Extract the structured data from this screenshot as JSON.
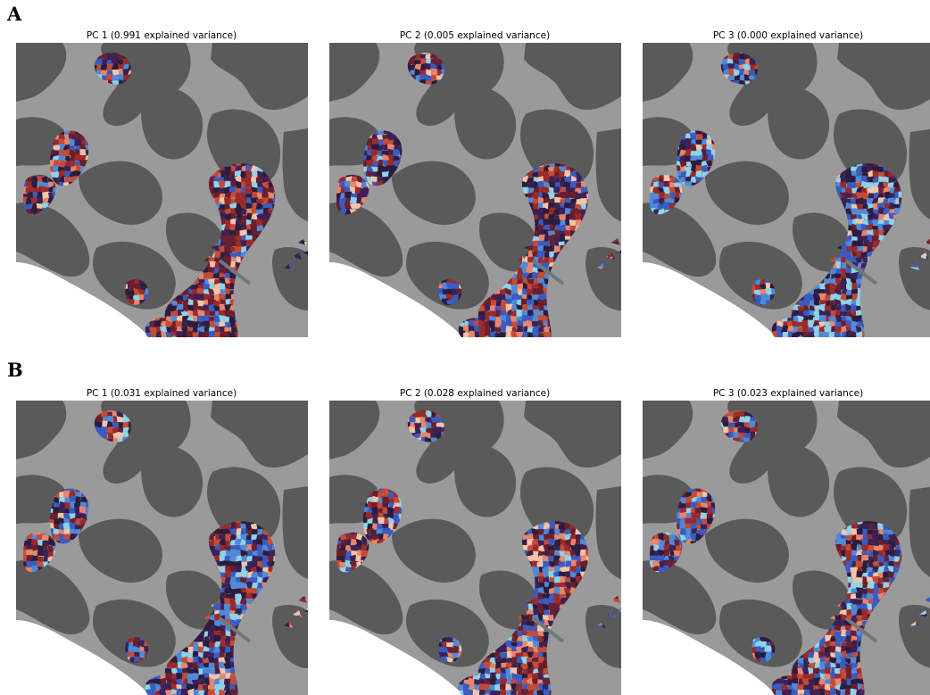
{
  "panels": [
    {
      "letter": "A",
      "plots": [
        {
          "title": "PC 1 (0.991 explained variance)",
          "colors": [
            "#2c1c3e",
            "#3d2154",
            "#6a1f2e",
            "#9b2a2a",
            "#c44b36",
            "#e8866b",
            "#f5c4a8",
            "#3a5bbf",
            "#4f89d9",
            "#8fd3e8"
          ],
          "weights": [
            16,
            12,
            16,
            12,
            10,
            8,
            5,
            10,
            7,
            4
          ]
        },
        {
          "title": "PC 2 (0.005 explained variance)",
          "colors": [
            "#2c1c3e",
            "#3d2154",
            "#6a1f2e",
            "#9b2a2a",
            "#c44b36",
            "#e8866b",
            "#f5c4a8",
            "#3a5bbf",
            "#4f89d9",
            "#8fd3e8"
          ],
          "weights": [
            14,
            12,
            12,
            10,
            8,
            8,
            6,
            14,
            10,
            6
          ]
        },
        {
          "title": "PC 3 (0.000 explained variance)",
          "colors": [
            "#2c1c3e",
            "#3d2154",
            "#6a1f2e",
            "#9b2a2a",
            "#c44b36",
            "#e8866b",
            "#f5c4a8",
            "#3a5bbf",
            "#4f89d9",
            "#8fd3e8"
          ],
          "weights": [
            12,
            12,
            6,
            8,
            6,
            5,
            3,
            18,
            14,
            16
          ]
        }
      ]
    },
    {
      "letter": "B",
      "plots": [
        {
          "title": "PC 1 (0.031 explained variance)",
          "colors": [
            "#2c1c3e",
            "#3d2154",
            "#6a1f2e",
            "#9b2a2a",
            "#c44b36",
            "#e8866b",
            "#f5c4a8",
            "#3a5bbf",
            "#4f89d9",
            "#8fd3e8"
          ],
          "weights": [
            14,
            12,
            10,
            9,
            8,
            7,
            6,
            14,
            12,
            8
          ]
        },
        {
          "title": "PC 2 (0.028 explained variance)",
          "colors": [
            "#2c1c3e",
            "#3d2154",
            "#6a1f2e",
            "#9b2a2a",
            "#c44b36",
            "#e8866b",
            "#f5c4a8",
            "#3a5bbf",
            "#4f89d9",
            "#8fd3e8"
          ],
          "weights": [
            14,
            12,
            12,
            10,
            9,
            8,
            8,
            12,
            9,
            6
          ]
        },
        {
          "title": "PC 3 (0.023 explained variance)",
          "colors": [
            "#2c1c3e",
            "#3d2154",
            "#6a1f2e",
            "#9b2a2a",
            "#c44b36",
            "#e8866b",
            "#f5c4a8",
            "#3a5bbf",
            "#4f89d9",
            "#8fd3e8"
          ],
          "weights": [
            14,
            12,
            10,
            9,
            8,
            7,
            5,
            14,
            12,
            9
          ]
        }
      ]
    }
  ],
  "surface_colors": {
    "gyrus": "#9a9a9a",
    "sulcus": "#5a5a5a",
    "background": "#ffffff"
  }
}
